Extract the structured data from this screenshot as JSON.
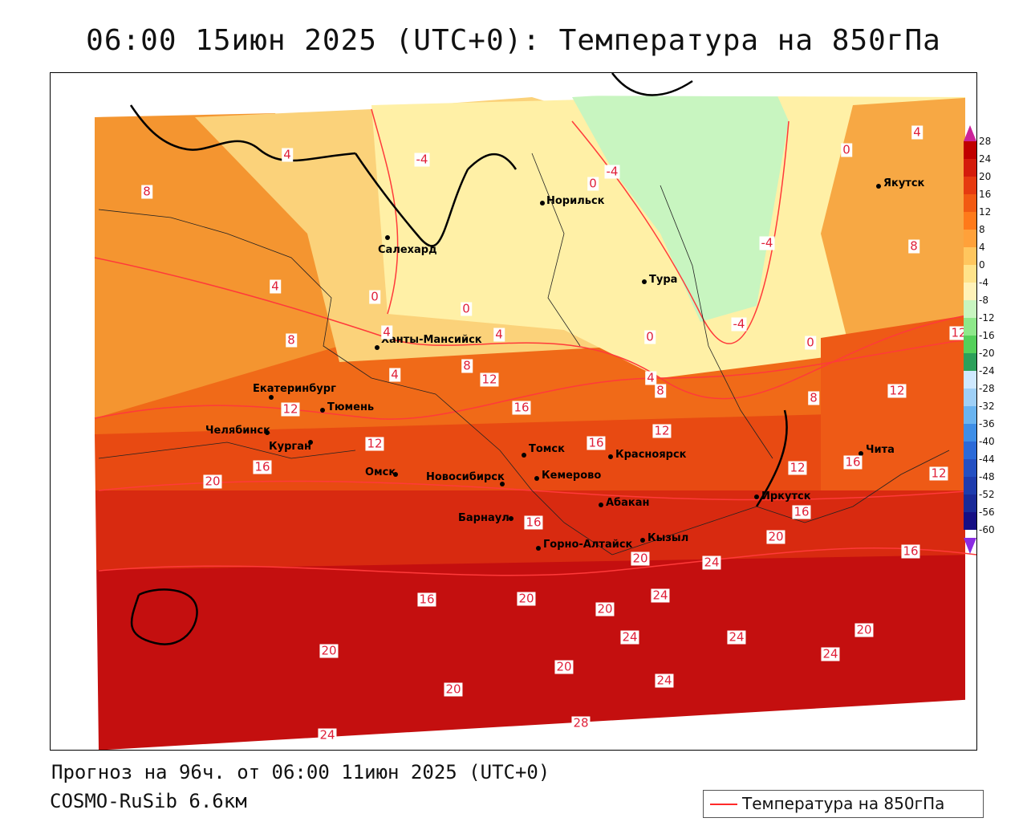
{
  "title": "06:00 15июн 2025 (UTC+0): Температура на 850гПа",
  "forecast_text": "Прогноз на 96ч. от 06:00 11июн 2025 (UTC+0)",
  "model_text": "COSMO-RuSib 6.6км",
  "legend": {
    "label": "Температура на 850гПа",
    "line_color": "#ff2a2a"
  },
  "colorbar": {
    "ticks": [
      "28",
      "24",
      "20",
      "16",
      "12",
      "8",
      "4",
      "0",
      "-4",
      "-8",
      "-12",
      "-16",
      "-20",
      "-24",
      "-28",
      "-32",
      "-36",
      "-40",
      "-44",
      "-48",
      "-52",
      "-56",
      "-60"
    ],
    "colors": [
      "#c00000",
      "#d41c0c",
      "#e63a10",
      "#f25a12",
      "#ff7a1a",
      "#ffa13a",
      "#ffc65e",
      "#ffe38a",
      "#fff2b8",
      "#c8f5c0",
      "#8ee88a",
      "#54d05a",
      "#2ca05a",
      "#cfe9ff",
      "#9fd0f7",
      "#6ab4f0",
      "#3e8ee6",
      "#2b6ad8",
      "#2450c2",
      "#1e3cad",
      "#1a2a98",
      "#160f84"
    ]
  },
  "cities": [
    {
      "name": "Норильск"
    },
    {
      "name": "Салехард"
    },
    {
      "name": "Тура"
    },
    {
      "name": "Якутск"
    },
    {
      "name": "Ханты-Мансийск"
    },
    {
      "name": "Екатеринбург"
    },
    {
      "name": "Тюмень"
    },
    {
      "name": "Челябинск"
    },
    {
      "name": "Курган"
    },
    {
      "name": "Омск"
    },
    {
      "name": "Томск"
    },
    {
      "name": "Новосибирск"
    },
    {
      "name": "Кемерово"
    },
    {
      "name": "Красноярск"
    },
    {
      "name": "Барнаул"
    },
    {
      "name": "Абакан"
    },
    {
      "name": "Горно-Алтайск"
    },
    {
      "name": "Кызыл"
    },
    {
      "name": "Иркутск"
    },
    {
      "name": "Чита"
    }
  ],
  "contour_labels": [
    "-4",
    "-4",
    "-4",
    "-4",
    "0",
    "0",
    "0",
    "0",
    "0",
    "0",
    "4",
    "4",
    "4",
    "4",
    "4",
    "4",
    "4",
    "8",
    "8",
    "8",
    "8",
    "8",
    "8",
    "12",
    "12",
    "12",
    "12",
    "12",
    "12",
    "12",
    "12",
    "16",
    "16",
    "16",
    "16",
    "16",
    "16",
    "16",
    "16",
    "20",
    "20",
    "20",
    "20",
    "20",
    "20",
    "20",
    "20",
    "20",
    "24",
    "24",
    "24",
    "24",
    "24",
    "24",
    "24",
    "28"
  ],
  "colors": {
    "contour": "#ff2a2a",
    "land_border": "#000000"
  }
}
